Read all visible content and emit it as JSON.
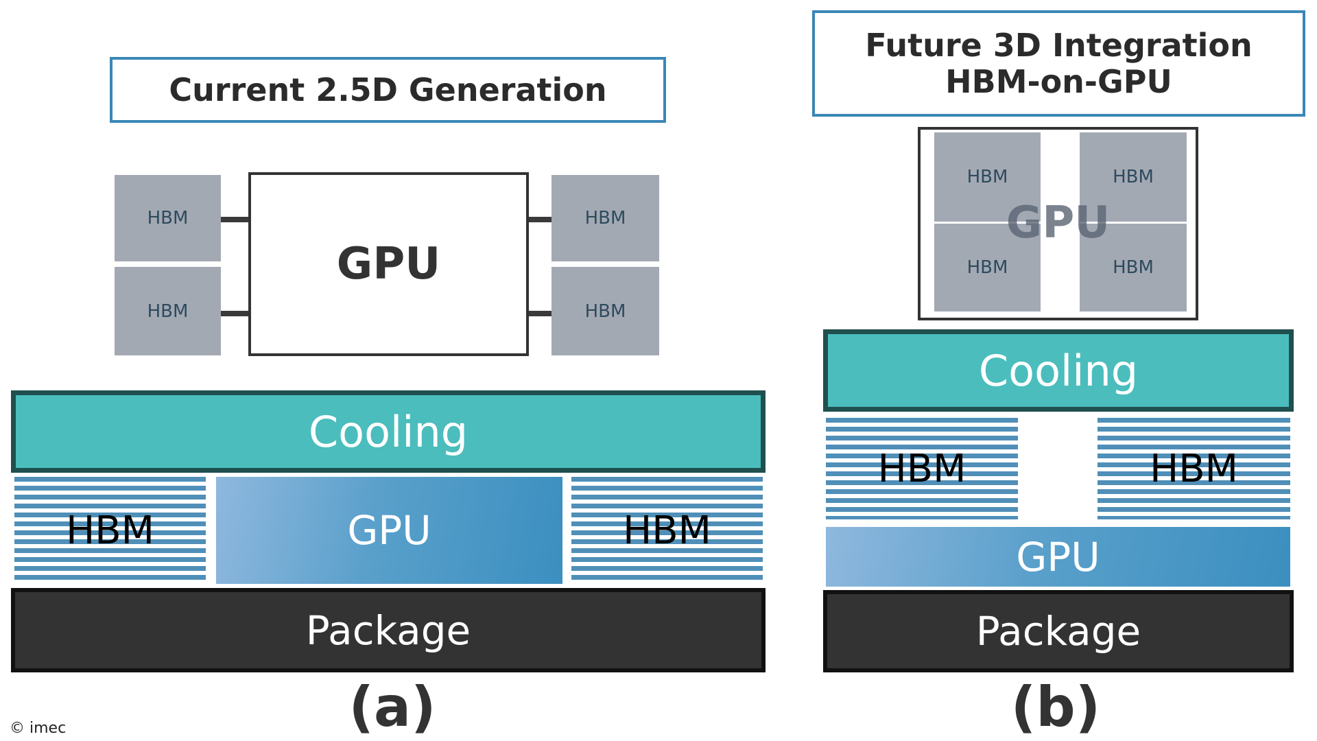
{
  "panel_a": {
    "title": "Current 2.5D Generation",
    "chips": [
      "HBM",
      "HBM",
      "HBM",
      "HBM"
    ],
    "gpu_die": "GPU",
    "cooling": "Cooling",
    "hbm_left": "HBM",
    "gpu": "GPU",
    "hbm_right": "HBM",
    "package": "Package",
    "label": "(a)"
  },
  "panel_b": {
    "title_line1": "Future 3D Integration",
    "title_line2": "HBM-on-GPU",
    "chips": [
      "HBM",
      "HBM",
      "HBM",
      "HBM"
    ],
    "gpu_die": "GPU",
    "cooling": "Cooling",
    "hbm_left": "HBM",
    "hbm_right": "HBM",
    "gpu": "GPU",
    "package": "Package",
    "label": "(b)"
  },
  "copyright": "© imec",
  "colors": {
    "cooling": "#4bbdbd",
    "gpu": "#3b8fc0",
    "package": "#333333",
    "hbm_chip": "#a3a9b3",
    "title_border": "#3a87b7"
  }
}
